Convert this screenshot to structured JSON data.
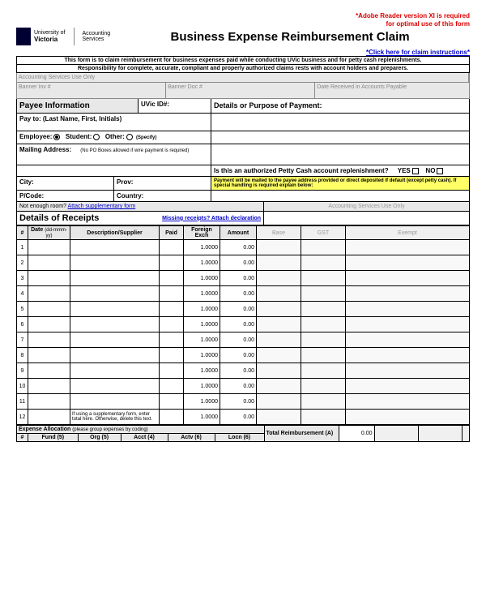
{
  "notice": {
    "line1": "*Adobe Reader version XI is required",
    "line2": "for optimal use of this form"
  },
  "instructions_link": "*Click here for claim instructions*",
  "logo": {
    "university": "University of",
    "victoria": "Victoria",
    "dept1": "Accounting",
    "dept2": "Services"
  },
  "title": "Business Expense Reimbursement Claim",
  "form_note": "This form is to claim reimbursement for business expenses paid while conducting UVic business and for petty cash replenishments.",
  "responsibility": "Responsibility for complete, accurate, compliant and properly authorized claims rests with account holders and preparers.",
  "asu_only": "Accounting Services Use Only",
  "banner_inv": "Banner Inv #",
  "banner_doc": "Banner Doc #",
  "date_received": "Date Received in Accounts Payable",
  "payee_info": "Payee Information",
  "uvic_id": "UVic ID#:",
  "details_purpose": "Details or Purpose of Payment:",
  "payto": "Pay to:  (Last Name, First, Initials)",
  "employee": "Employee:",
  "student": "Student:",
  "other": "Other:",
  "specify": "(Specify)",
  "mailing": "Mailing Address:",
  "mailing_note": "(No PO Boxes allowed if wire payment is required)",
  "petty_q": "Is this an authorized Petty Cash account replenishment?",
  "yes": "YES",
  "no": "NO",
  "city": "City:",
  "prov": "Prov:",
  "payment_note": "Payment will be mailed to the payee address provided or direct deposited if default (except petty cash). If special handling is required explain below:",
  "pcode": "P/Code:",
  "country": "Country:",
  "not_enough": "Not enough room?",
  "attach_supp": "Attach supplementary form",
  "details_receipts": "Details of Receipts",
  "missing": "Missing receipts? Attach declaration",
  "th": {
    "num": "#",
    "date": "Date",
    "date_fmt": "(dd-mmm-yy)",
    "desc": "Description/Supplier",
    "paid": "Paid",
    "fx": "Foreign Exch",
    "amount": "Amount",
    "base": "Base",
    "gst": "GST",
    "exempt": "Exempt"
  },
  "rows": [
    {
      "n": 1,
      "fx": "1.0000",
      "amt": "0.00"
    },
    {
      "n": 2,
      "fx": "1.0000",
      "amt": "0.00"
    },
    {
      "n": 3,
      "fx": "1.0000",
      "amt": "0.00"
    },
    {
      "n": 4,
      "fx": "1.0000",
      "amt": "0.00"
    },
    {
      "n": 5,
      "fx": "1.0000",
      "amt": "0.00"
    },
    {
      "n": 6,
      "fx": "1.0000",
      "amt": "0.00"
    },
    {
      "n": 7,
      "fx": "1.0000",
      "amt": "0.00"
    },
    {
      "n": 8,
      "fx": "1.0000",
      "amt": "0.00"
    },
    {
      "n": 9,
      "fx": "1.0000",
      "amt": "0.00"
    },
    {
      "n": 10,
      "fx": "1.0000",
      "amt": "0.00"
    },
    {
      "n": 11,
      "fx": "1.0000",
      "amt": "0.00"
    },
    {
      "n": 12,
      "fx": "1.0000",
      "amt": "0.00",
      "note": "If using a supplementary form, enter total here. Otherwise, delete this text."
    }
  ],
  "expense_alloc": "Expense Allocation",
  "alloc_note": "(please group expenses by coding)",
  "total_reimb": "Total Reimbursement (A)",
  "total_val": "0.00",
  "alloc_th": {
    "num": "#",
    "fund": "Fund (5)",
    "org": "Org (5)",
    "acct": "Acct (4)",
    "actv": "Actv (6)",
    "locn": "Locn (6)"
  }
}
